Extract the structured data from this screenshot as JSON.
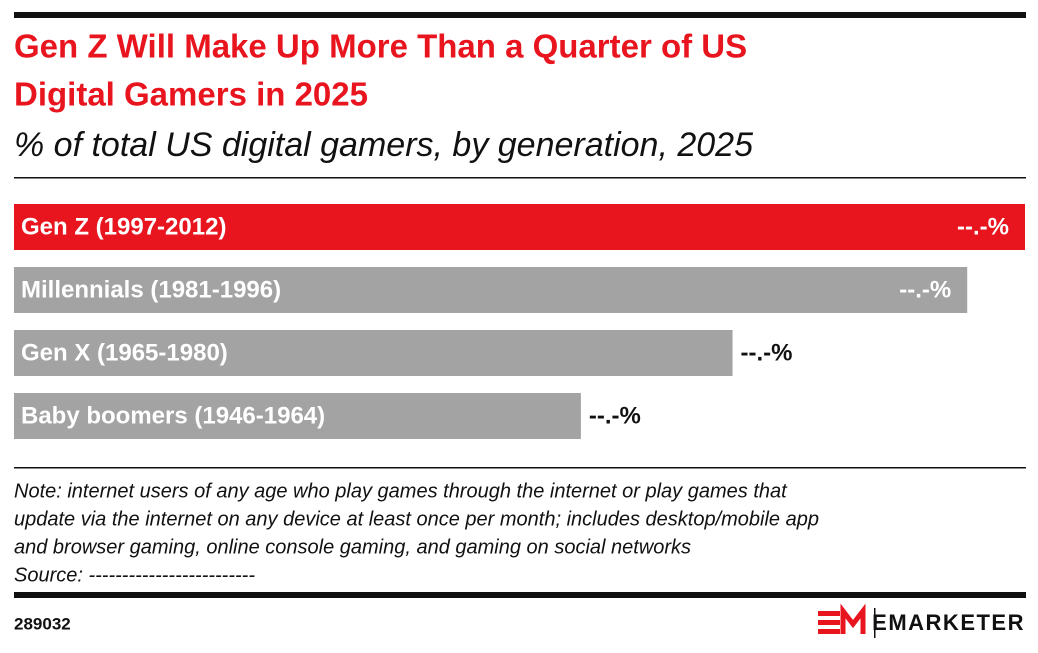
{
  "chart_data": {
    "type": "bar",
    "orientation": "horizontal",
    "title": [
      "Gen Z Will Make Up More Than a Quarter of US",
      "Digital Gamers in 2025"
    ],
    "subtitle": "% of total US digital gamers, by generation, 2025",
    "categories": [
      "Gen Z (1997-2012)",
      "Millennials (1981-1996)",
      "Gen X (1965-1980)",
      "Baby boomers (1946-1964)"
    ],
    "values": [
      28,
      26.4,
      19.9,
      15.7
    ],
    "value_labels": [
      "--.-%",
      "--.-%",
      "--.-%",
      "--.-%"
    ],
    "colors": [
      "#e8141e",
      "#a3a3a3",
      "#a3a3a3",
      "#a3a3a3"
    ],
    "note": [
      "Note: internet users of any age who play games through the internet or play games that",
      "update via the internet on any device at least once per month; includes desktop/mobile app",
      "and browser gaming, online console gaming, and gaming on social networks",
      "Source: -------------------------"
    ],
    "chart_id": "289032",
    "brand": "EMARKETER"
  }
}
